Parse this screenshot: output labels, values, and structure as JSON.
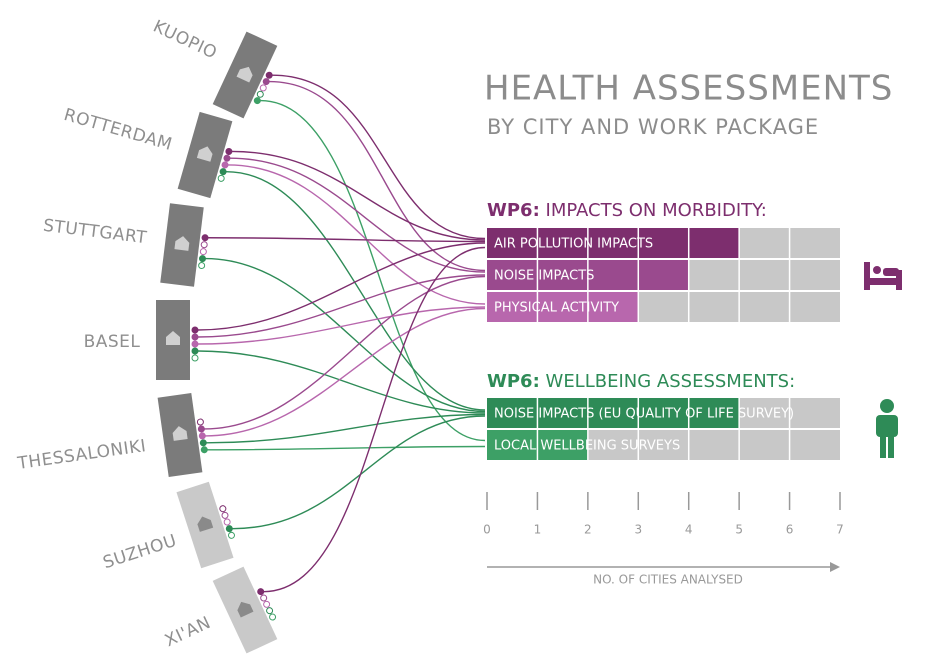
{
  "chart_data": {
    "type": "bar",
    "title": "HEALTH ASSESSMENTS",
    "subtitle": "BY CITY AND WORK PACKAGE",
    "groups": [
      {
        "prefix": "WP6:",
        "name": "IMPACTS ON MORBIDITY:",
        "color": "#7d2e6e",
        "categories": [
          "AIR POLLUTION IMPACTS",
          "NOISE IMPACTS",
          "PHYSICAL ACTIVITY"
        ],
        "values": [
          5,
          4,
          3
        ],
        "colors": [
          "#7d2e6e",
          "#9a4a8e",
          "#b867ad"
        ]
      },
      {
        "prefix": "WP6:",
        "name": "WELLBEING ASSESSMENTS:",
        "color": "#2e8b57",
        "categories": [
          "NOISE IMPACTS (EU QUALITY OF LIFE SURVEY)",
          "LOCAL WELLBEING SURVEYS"
        ],
        "values": [
          5,
          2
        ],
        "colors": [
          "#2e8b57",
          "#3da066"
        ]
      }
    ],
    "xlim": [
      0,
      7
    ],
    "xticks": [
      0,
      1,
      2,
      3,
      4,
      5,
      6,
      7
    ],
    "xlabel": "NO. OF CITIES ANALYSED",
    "cities": [
      "KUOPIO",
      "ROTTERDAM",
      "STUTTGART",
      "BASEL",
      "THESSALONIKI",
      "SUZHOU",
      "XI'AN"
    ]
  }
}
